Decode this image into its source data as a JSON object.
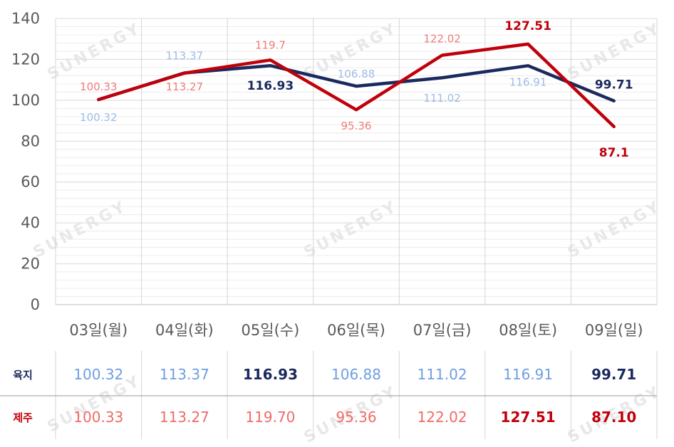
{
  "chart_data": {
    "type": "line",
    "categories": [
      "03일(월)",
      "04일(화)",
      "05일(수)",
      "06일(목)",
      "07일(금)",
      "08일(토)",
      "09일(일)"
    ],
    "ylim": [
      0,
      140
    ],
    "yticks": [
      "0",
      "20",
      "40",
      "60",
      "80",
      "100",
      "120",
      "140"
    ],
    "grid": true,
    "series": [
      {
        "name": "육지",
        "color": "#1a2a5e",
        "label_color": "#9fbbe6",
        "values": [
          100.32,
          113.37,
          116.93,
          106.88,
          111.02,
          116.91,
          99.71
        ],
        "point_labels": [
          "100.32",
          "113.37",
          "116.93",
          "106.88",
          "111.02",
          "116.91",
          "99.71"
        ],
        "table_values": [
          "100.32",
          "113.37",
          "116.93",
          "106.88",
          "111.02",
          "116.91",
          "99.71"
        ],
        "table_color": "#6f9ee0",
        "highlight_indices": [
          2,
          6
        ]
      },
      {
        "name": "제주",
        "color": "#c0000b",
        "label_color": "#ee7c78",
        "values": [
          100.33,
          113.27,
          119.7,
          95.36,
          122.02,
          127.51,
          87.1
        ],
        "point_labels": [
          "100.33",
          "113.27",
          "119.7",
          "95.36",
          "122.02",
          "127.51",
          "87.1"
        ],
        "table_values": [
          "100.33",
          "113.27",
          "119.70",
          "95.36",
          "122.02",
          "127.51",
          "87.10"
        ],
        "table_color": "#ef6b67",
        "highlight_indices": [
          5,
          6
        ]
      }
    ]
  },
  "watermark": "SUNERGY"
}
